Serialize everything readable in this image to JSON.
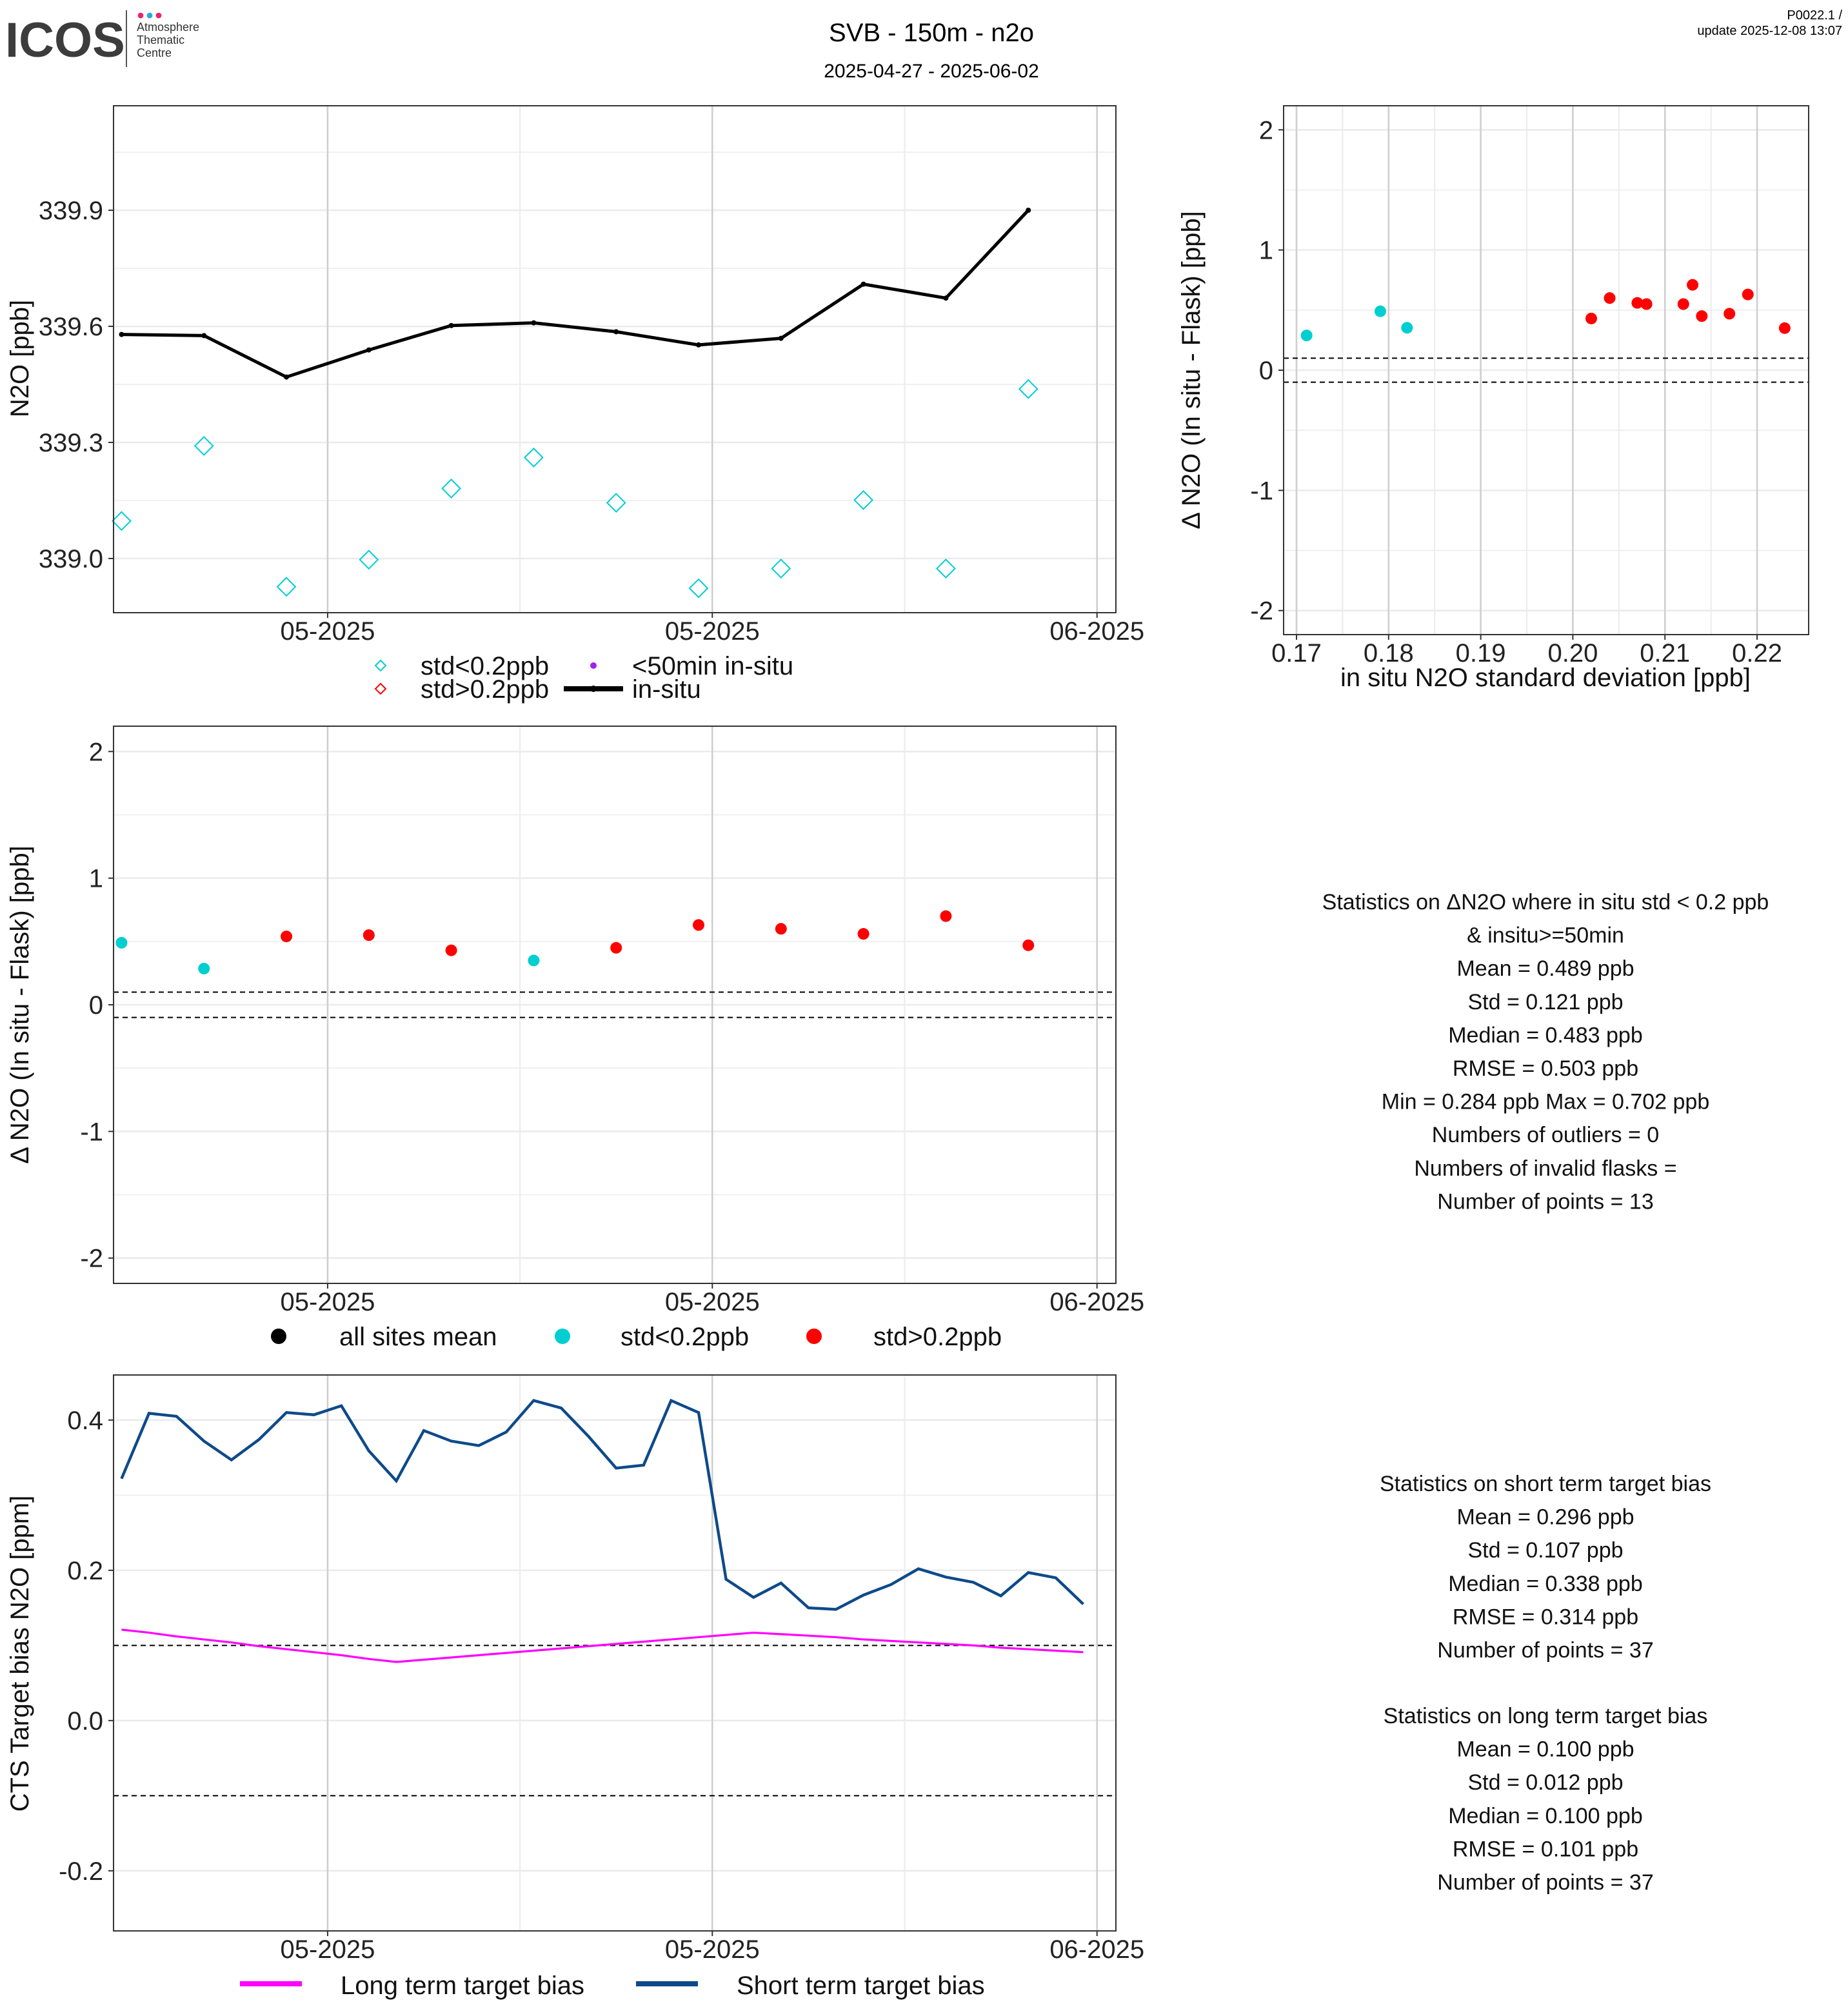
{
  "header": {
    "logo_text": "ICOS",
    "logo_sub": [
      "Atmosphere",
      "Thematic",
      "Centre"
    ],
    "logo_dot_colors": [
      "#e8266e",
      "#2aa9e0",
      "#e8266e"
    ],
    "title": "SVB - 150m - n2o",
    "subtitle": "2025-04-27 - 2025-06-02",
    "version": "P0022.1 /",
    "update": "update  2025-12-08 13:07"
  },
  "colors": {
    "cyan": "#00CED1",
    "red": "#FF0000",
    "purple": "#A020F0",
    "black": "#000000",
    "magenta": "#FF00FF",
    "blue": "#0D4A8A"
  },
  "chart_data": [
    {
      "type": "line",
      "id": "n2o-timeseries",
      "ylabel": "N2O [ppb]",
      "xlim": [
        "2025-04-27 05:00",
        "2025-06-02 16:30"
      ],
      "ylim": [
        338.86,
        340.17
      ],
      "x_ticks": [
        {
          "date": "2025-05-05",
          "label": "05-2025"
        },
        {
          "date": "2025-05-19",
          "label": "05-2025"
        },
        {
          "date": "2025-06-02",
          "label": "06-2025"
        }
      ],
      "y_ticks": [
        {
          "v": 339.0,
          "label": "339.0"
        },
        {
          "v": 339.3,
          "label": "339.3"
        },
        {
          "v": 339.6,
          "label": "339.6"
        },
        {
          "v": 339.9,
          "label": "339.9"
        }
      ],
      "grid": true,
      "x": [
        "2025-04-27 12:00",
        "2025-04-30 12:00",
        "2025-05-03 12:00",
        "2025-05-06 12:00",
        "2025-05-09 12:00",
        "2025-05-12 12:00",
        "2025-05-15 12:00",
        "2025-05-18 12:00",
        "2025-05-21 12:00",
        "2025-05-24 12:00",
        "2025-05-27 12:00",
        "2025-05-30 12:00"
      ],
      "series": [
        {
          "name": "in-situ",
          "kind": "line",
          "values": [
            339.579,
            339.576,
            339.469,
            339.539,
            339.602,
            339.609,
            339.586,
            339.552,
            339.569,
            339.709,
            339.673,
            339.9
          ]
        },
        {
          "name": "std<0.2ppb",
          "kind": "diamond",
          "values": [
            339.097,
            339.291,
            338.927,
            338.997,
            339.181,
            339.261,
            339.144,
            338.923,
            338.974,
            339.151,
            338.974,
            339.438
          ]
        }
      ],
      "legend": {
        "placement": "bottom",
        "items": [
          {
            "label": "std<0.2ppb",
            "symbol": "diamond",
            "color": "cyan"
          },
          {
            "label": "std>0.2ppb",
            "symbol": "diamond",
            "color": "red"
          },
          {
            "label": "<50min in-situ",
            "symbol": "dot",
            "color": "purple"
          },
          {
            "label": "in-situ",
            "symbol": "line",
            "color": "black"
          }
        ]
      }
    },
    {
      "type": "scatter",
      "id": "delta-vs-std",
      "xlabel": "in situ N2O standard deviation [ppb]",
      "ylabel": "Δ N2O (In situ - Flask) [ppb]",
      "xlim": [
        0.1686,
        0.2256
      ],
      "ylim": [
        -2.2,
        2.2
      ],
      "x_ticks": [
        {
          "v": 0.17,
          "label": "0.17"
        },
        {
          "v": 0.18,
          "label": "0.18"
        },
        {
          "v": 0.19,
          "label": "0.19"
        },
        {
          "v": 0.2,
          "label": "0.20"
        },
        {
          "v": 0.21,
          "label": "0.21"
        },
        {
          "v": 0.22,
          "label": "0.22"
        }
      ],
      "y_ticks": [
        {
          "v": 2,
          "label": "2"
        },
        {
          "v": 1,
          "label": "1"
        },
        {
          "v": 0,
          "label": "0"
        },
        {
          "v": -1,
          "label": "-1"
        },
        {
          "v": -2,
          "label": "-2"
        }
      ],
      "hlines": [
        0.1,
        -0.1
      ],
      "grid": true,
      "points": [
        {
          "x": 0.1711,
          "y": 0.289,
          "c": "cyan"
        },
        {
          "x": 0.1791,
          "y": 0.49,
          "c": "cyan"
        },
        {
          "x": 0.182,
          "y": 0.353,
          "c": "cyan"
        },
        {
          "x": 0.202,
          "y": 0.43,
          "c": "red"
        },
        {
          "x": 0.204,
          "y": 0.6,
          "c": "red"
        },
        {
          "x": 0.207,
          "y": 0.56,
          "c": "red"
        },
        {
          "x": 0.208,
          "y": 0.55,
          "c": "red"
        },
        {
          "x": 0.212,
          "y": 0.55,
          "c": "red"
        },
        {
          "x": 0.213,
          "y": 0.71,
          "c": "red"
        },
        {
          "x": 0.214,
          "y": 0.45,
          "c": "red"
        },
        {
          "x": 0.217,
          "y": 0.47,
          "c": "red"
        },
        {
          "x": 0.219,
          "y": 0.63,
          "c": "red"
        },
        {
          "x": 0.223,
          "y": 0.35,
          "c": "red"
        }
      ]
    },
    {
      "type": "scatter",
      "id": "delta-timeseries",
      "ylabel": "Δ N2O (In situ - Flask) [ppb]",
      "xlim": [
        "2025-04-27 05:00",
        "2025-06-02 16:30"
      ],
      "ylim": [
        -2.2,
        2.2
      ],
      "x_ticks": [
        {
          "date": "2025-05-05",
          "label": "05-2025"
        },
        {
          "date": "2025-05-19",
          "label": "05-2025"
        },
        {
          "date": "2025-06-02",
          "label": "06-2025"
        }
      ],
      "y_ticks": [
        {
          "v": 2,
          "label": "2"
        },
        {
          "v": 1,
          "label": "1"
        },
        {
          "v": 0,
          "label": "0"
        },
        {
          "v": -1,
          "label": "-1"
        },
        {
          "v": -2,
          "label": "-2"
        }
      ],
      "hlines": [
        0.1,
        -0.1
      ],
      "grid": true,
      "x": [
        "2025-04-27 12:00",
        "2025-04-30 12:00",
        "2025-05-03 12:00",
        "2025-05-06 12:00",
        "2025-05-09 12:00",
        "2025-05-12 12:00",
        "2025-05-15 12:00",
        "2025-05-18 12:00",
        "2025-05-21 12:00",
        "2025-05-24 12:00",
        "2025-05-27 12:00",
        "2025-05-30 12:00"
      ],
      "values": [
        0.49,
        0.286,
        0.54,
        0.55,
        0.43,
        0.35,
        0.45,
        0.63,
        0.6,
        0.56,
        0.7,
        0.47
      ],
      "point_colors": [
        "cyan",
        "cyan",
        "red",
        "red",
        "red",
        "cyan",
        "red",
        "red",
        "red",
        "red",
        "red",
        "red"
      ],
      "legend": {
        "placement": "bottom",
        "items": [
          {
            "label": "all sites mean",
            "color": "black"
          },
          {
            "label": "std<0.2ppb",
            "color": "cyan"
          },
          {
            "label": "std>0.2ppb",
            "color": "red"
          }
        ]
      }
    },
    {
      "type": "line",
      "id": "target-bias",
      "ylabel": "CTS Target bias N2O [ppm]",
      "xlim": [
        "2025-04-27 05:00",
        "2025-06-02 16:30"
      ],
      "ylim": [
        -0.28,
        0.46
      ],
      "x_ticks": [
        {
          "date": "2025-05-05",
          "label": "05-2025"
        },
        {
          "date": "2025-05-19",
          "label": "05-2025"
        },
        {
          "date": "2025-06-02",
          "label": "06-2025"
        }
      ],
      "y_ticks": [
        {
          "v": 0.4,
          "label": "0.4"
        },
        {
          "v": 0.2,
          "label": "0.2"
        },
        {
          "v": 0.0,
          "label": "0.0"
        },
        {
          "v": -0.2,
          "label": "-0.2"
        }
      ],
      "hlines": [
        0.1,
        -0.1
      ],
      "grid": true,
      "x_start": "2025-04-27 12:00",
      "x_step_days": 1,
      "series": [
        {
          "name": "Long term target bias",
          "color": "magenta",
          "values": [
            0.121,
            0.117,
            0.112,
            0.108,
            0.104,
            0.099,
            0.095,
            0.091,
            0.087,
            0.082,
            0.078,
            0.081,
            0.084,
            0.087,
            0.09,
            0.093,
            0.096,
            0.099,
            0.102,
            0.105,
            0.108,
            0.111,
            0.114,
            0.117,
            0.115,
            0.113,
            0.111,
            0.108,
            0.106,
            0.104,
            0.102,
            0.1,
            0.097,
            0.095,
            0.093,
            0.091
          ]
        },
        {
          "name": "Short term target bias",
          "color": "blue",
          "values": [
            0.322,
            0.409,
            0.405,
            0.372,
            0.347,
            0.374,
            0.41,
            0.407,
            0.419,
            0.359,
            0.319,
            0.386,
            0.372,
            0.366,
            0.384,
            0.426,
            0.416,
            0.378,
            0.336,
            0.34,
            0.426,
            0.41,
            0.188,
            0.164,
            0.183,
            0.15,
            0.148,
            0.167,
            0.181,
            0.202,
            0.191,
            0.184,
            0.166,
            0.197,
            0.19,
            0.155
          ]
        }
      ],
      "legend": {
        "placement": "bottom"
      }
    }
  ],
  "stats": {
    "delta": [
      "Statistics on ΔN2O where in situ std < 0.2 ppb",
      "& insitu>=50min",
      "Mean =  0.489 ppb",
      "Std =  0.121 ppb",
      "Median =  0.483 ppb",
      "RMSE =  0.503 ppb",
      "Min =  0.284 ppb Max =  0.702 ppb",
      "Numbers of outliers =  0",
      "Numbers of invalid flasks = ",
      "Number of points =  13"
    ],
    "short": [
      "Statistics on short term target bias",
      "Mean =  0.296 ppb",
      "Std =  0.107 ppb",
      "Median =  0.338 ppb",
      "RMSE =  0.314 ppb",
      "Number of points =  37"
    ],
    "long": [
      "Statistics on long term target bias",
      "Mean =  0.100 ppb",
      "Std =  0.012 ppb",
      "Median =  0.100 ppb",
      "RMSE =  0.101 ppb",
      "Number of points =  37"
    ]
  }
}
